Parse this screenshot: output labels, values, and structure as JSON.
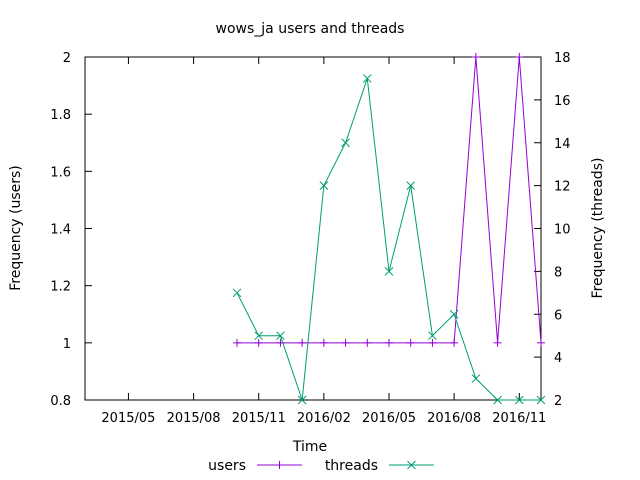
{
  "chart_data": {
    "type": "line",
    "title": "wows_ja users and threads",
    "xlabel": "Time",
    "ylabel_left": "Frequency (users)",
    "ylabel_right": "Frequency (threads)",
    "x_tick_labels": [
      "2015/05",
      "2015/08",
      "2015/11",
      "2016/02",
      "2016/05",
      "2016/08",
      "2016/11"
    ],
    "x_range": [
      "2015-03",
      "2016-12"
    ],
    "y_left_ticks": [
      "0.8",
      "1",
      "1.2",
      "1.4",
      "1.6",
      "1.8",
      "2"
    ],
    "y_left_range": [
      0.8,
      2
    ],
    "y_right_ticks": [
      "2",
      "4",
      "6",
      "8",
      "10",
      "12",
      "14",
      "16",
      "18"
    ],
    "y_right_range": [
      2,
      18
    ],
    "grid": false,
    "legend_position": "bottom",
    "x": [
      "2015-10",
      "2015-11",
      "2015-12",
      "2016-01",
      "2016-02",
      "2016-03",
      "2016-04",
      "2016-05",
      "2016-06",
      "2016-07",
      "2016-08",
      "2016-09",
      "2016-10",
      "2016-11",
      "2016-12"
    ],
    "series": [
      {
        "name": "users",
        "axis": "left",
        "color": "#9400d3",
        "marker": "plus",
        "values": [
          1,
          1,
          1,
          1,
          1,
          1,
          1,
          1,
          1,
          1,
          1,
          2,
          1,
          2,
          1
        ]
      },
      {
        "name": "threads",
        "axis": "right",
        "color": "#009e73",
        "marker": "cross",
        "values": [
          7,
          5,
          5,
          2,
          12,
          14,
          17,
          8,
          12,
          5,
          6,
          3,
          2,
          2,
          2
        ]
      }
    ]
  }
}
